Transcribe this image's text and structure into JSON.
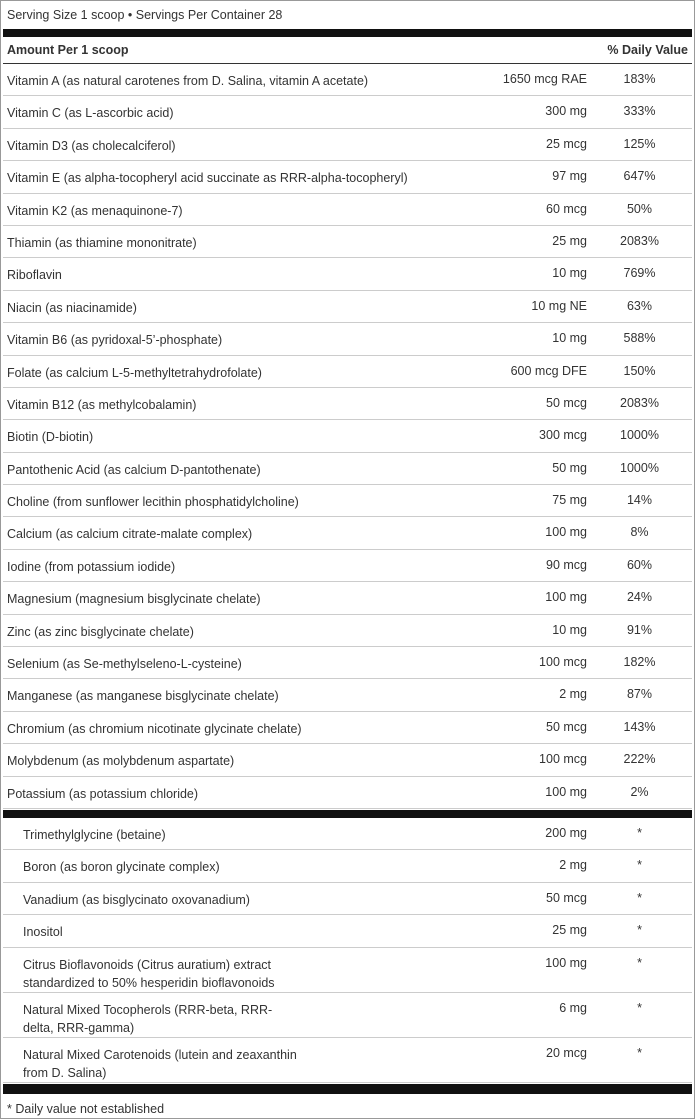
{
  "header": {
    "serving": "Serving Size 1 scoop • Servings Per Container 28",
    "amount_label": "Amount Per 1 scoop",
    "dv_label": "% Daily Value"
  },
  "rows": [
    [
      "Vitamin A (as natural carotenes from D. Salina, vitamin A acetate)",
      "1650 mcg RAE",
      "183%"
    ],
    [
      "Vitamin C (as L-ascorbic acid)",
      "300 mg",
      "333%"
    ],
    [
      "Vitamin D3 (as cholecalciferol)",
      "25 mcg",
      "125%"
    ],
    [
      "Vitamin E (as alpha-tocopheryl acid succinate as RRR-alpha-tocopheryl)",
      "97 mg",
      "647%"
    ],
    [
      "Vitamin K2 (as menaquinone-7)",
      "60 mcg",
      "50%"
    ],
    [
      "Thiamin (as thiamine mononitrate)",
      "25 mg",
      "2083%"
    ],
    [
      "Riboflavin",
      "10 mg",
      "769%"
    ],
    [
      "Niacin (as niacinamide)",
      "10 mg NE",
      "63%"
    ],
    [
      "Vitamin B6 (as pyridoxal-5’-phosphate)",
      "10 mg",
      "588%"
    ],
    [
      "Folate (as calcium L-5-methyltetrahydrofolate)",
      "600 mcg DFE",
      "150%"
    ],
    [
      "Vitamin B12 (as methylcobalamin)",
      "50 mcg",
      "2083%"
    ],
    [
      "Biotin (D-biotin)",
      "300 mcg",
      "1000%"
    ],
    [
      "Pantothenic Acid (as calcium D-pantothenate)",
      "50 mg",
      "1000%"
    ],
    [
      "Choline (from sunflower lecithin phosphatidylcholine)",
      "75 mg",
      "14%"
    ],
    [
      "Calcium (as calcium citrate-malate complex)",
      "100 mg",
      "8%"
    ],
    [
      "Iodine (from potassium iodide)",
      "90 mcg",
      "60%"
    ],
    [
      "Magnesium (magnesium bisglycinate chelate)",
      "100 mg",
      "24%"
    ],
    [
      "Zinc (as zinc bisglycinate chelate)",
      "10 mg",
      "91%"
    ],
    [
      "Selenium (as Se-methylseleno-L-cysteine)",
      "100 mcg",
      "182%"
    ],
    [
      "Manganese (as manganese bisglycinate chelate)",
      "2 mg",
      "87%"
    ],
    [
      "Chromium (as chromium nicotinate glycinate chelate)",
      "50 mcg",
      "143%"
    ],
    [
      "Molybdenum (as molybdenum aspartate)",
      "100 mcg",
      "222%"
    ],
    [
      "Potassium (as potassium chloride)",
      "100 mg",
      "2%"
    ]
  ],
  "other_rows": [
    [
      "Trimethylglycine (betaine)",
      "200 mg",
      "*"
    ],
    [
      "Boron (as boron glycinate complex)",
      "2 mg",
      "*"
    ],
    [
      "Vanadium (as bisglycinato oxovanadium)",
      "50 mcg",
      "*"
    ],
    [
      "Inositol",
      "25 mg",
      "*"
    ],
    [
      "Citrus Bioflavonoids (Citrus auratium) extract standardized to 50% hesperidin bioflavonoids",
      "100 mg",
      "*"
    ],
    [
      "Natural Mixed Tocopherols (RRR-beta, RRR-delta, RRR-gamma)",
      "6 mg",
      "*"
    ],
    [
      "Natural Mixed Carotenoids (lutein and zeaxanthin from D. Salina)",
      "20 mcg",
      "*"
    ]
  ],
  "footnote": "* Daily value not established"
}
